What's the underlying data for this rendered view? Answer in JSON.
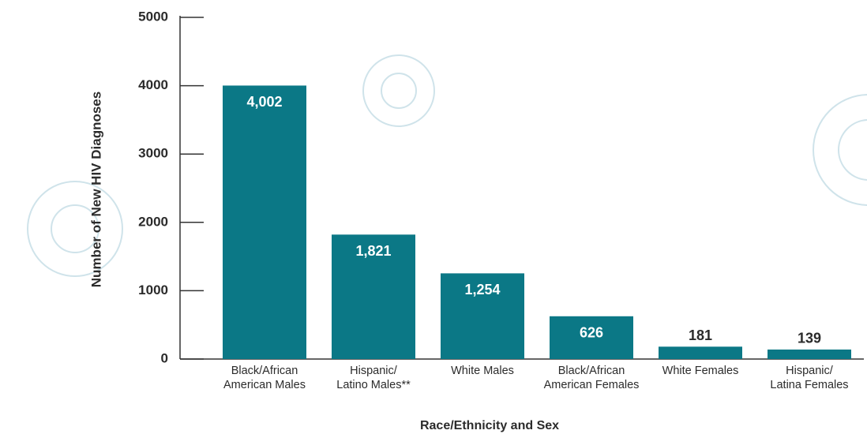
{
  "chart_data": {
    "type": "bar",
    "y_label": "Number of New HIV Diagnoses",
    "x_label": "Race/Ethnicity and Sex",
    "categories": [
      [
        "Black/African",
        "American Males"
      ],
      [
        "Hispanic/",
        "Latino Males**"
      ],
      [
        "White Males"
      ],
      [
        "Black/African",
        "American Females"
      ],
      [
        "White Females"
      ],
      [
        "Hispanic/",
        "Latina Females"
      ]
    ],
    "values": [
      4002,
      1821,
      1254,
      626,
      181,
      139
    ],
    "value_labels": [
      "4,002",
      "1,821",
      "1,254",
      "626",
      "181",
      "139"
    ],
    "color": "#0b7886",
    "ylim": [
      0,
      5000
    ],
    "yticks": [
      0,
      1000,
      2000,
      3000,
      4000,
      5000
    ]
  }
}
